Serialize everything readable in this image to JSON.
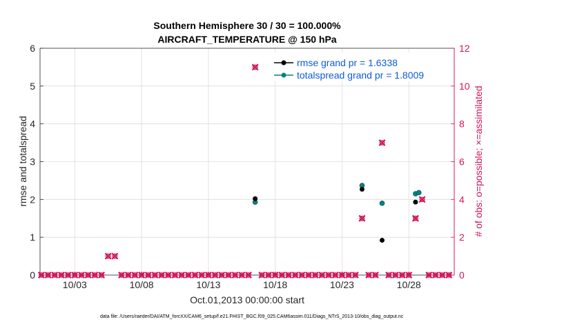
{
  "chart_data": {
    "type": "scatter",
    "title": "Southern Hemisphere 30 / 30 = 100.000%",
    "subtitle": "AIRCRAFT_TEMPERATURE @ 150 hPa",
    "xlabel": "Oct.01,2013 00:00:00 start",
    "ylabel_left": "rmse and totalspread",
    "ylabel_right": "# of obs: o=possible; ×=assimilated",
    "xlim": [
      0.4,
      31.4
    ],
    "ylim_left": [
      0,
      6
    ],
    "ylim_right": [
      0,
      12
    ],
    "x_tick_values": [
      3,
      8,
      13,
      18,
      23,
      28
    ],
    "x_tick_labels": [
      "10/03",
      "10/08",
      "10/13",
      "10/18",
      "10/23",
      "10/28"
    ],
    "y_left_ticks": [
      0,
      1,
      2,
      3,
      4,
      5,
      6
    ],
    "y_right_ticks": [
      0,
      2,
      4,
      6,
      8,
      10,
      12
    ],
    "grid": true,
    "legend_position": "top-right",
    "colors": {
      "rmse": "#000000",
      "totalspread": "#00837f",
      "obs": "#d4145a",
      "legend_text": "#0b5cd6",
      "right_axis": "#d4145a"
    },
    "series": [
      {
        "name": "rmse grand pr = 1.6338",
        "axis": "left",
        "x": [
          16.5,
          24.5,
          26.0,
          28.5
        ],
        "values": [
          2.02,
          2.27,
          0.92,
          1.93
        ]
      },
      {
        "name": "totalspread grand pr = 1.8009",
        "axis": "left",
        "x": [
          16.5,
          24.5,
          26.0,
          28.5,
          28.75
        ],
        "values": [
          1.93,
          2.37,
          1.9,
          2.15,
          2.18
        ]
      },
      {
        "name": "obs possible",
        "axis": "right",
        "x": [
          0.5,
          1,
          1.5,
          2,
          2.5,
          3,
          3.5,
          4,
          4.5,
          5,
          5.5,
          6,
          6.5,
          7,
          7.5,
          8,
          8.5,
          9,
          9.5,
          10,
          10.5,
          11,
          11.5,
          12,
          12.5,
          13,
          13.5,
          14,
          14.5,
          15,
          15.5,
          16,
          16.5,
          17,
          17.5,
          18,
          18.5,
          19,
          19.5,
          20,
          20.5,
          21,
          21.5,
          22,
          22.5,
          23,
          23.5,
          24,
          24.5,
          25,
          25.5,
          26,
          26.5,
          27,
          27.5,
          28,
          28.5,
          29,
          29.5,
          30,
          30.5,
          31
        ],
        "values": [
          0,
          0,
          0,
          0,
          0,
          0,
          0,
          0,
          0,
          0,
          1,
          1,
          0,
          0,
          0,
          0,
          0,
          0,
          0,
          0,
          0,
          0,
          0,
          0,
          0,
          0,
          0,
          0,
          0,
          0,
          0,
          0,
          11,
          0,
          0,
          0,
          0,
          0,
          0,
          0,
          0,
          0,
          0,
          0,
          0,
          0,
          0,
          0,
          3,
          0,
          0,
          7,
          0,
          0,
          0,
          0,
          3,
          4,
          0,
          0,
          0,
          0
        ]
      }
    ],
    "footer": "data file: /Users/raeder/DAI/ATM_forcXX/CAM6_setup/f.e21.FHIST_BGC.f09_025.CAM6assim.011/Diags_NTrS_2013-10/obs_diag_output.nc"
  }
}
